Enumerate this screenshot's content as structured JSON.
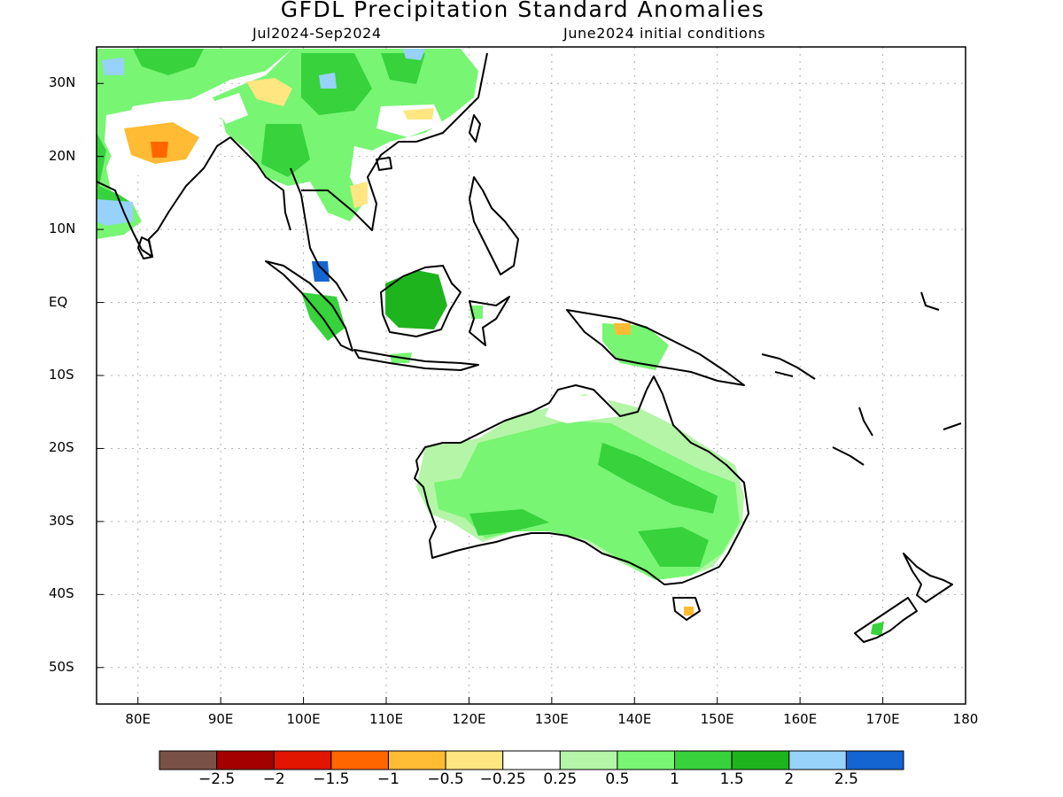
{
  "title": "GFDL Precipitation Standard Anomalies",
  "subtitle_left": "Jul2024-Sep2024",
  "subtitle_right": "June2024 initial conditions",
  "map": {
    "lon_range": [
      75,
      180
    ],
    "lat_range": [
      -55,
      35
    ],
    "lat_labels": [
      "30N",
      "20N",
      "10N",
      "EQ",
      "10S",
      "20S",
      "30S",
      "40S",
      "50S"
    ],
    "lat_values": [
      30,
      20,
      10,
      0,
      -10,
      -20,
      -30,
      -40,
      -50
    ],
    "lon_labels": [
      "80E",
      "90E",
      "100E",
      "110E",
      "120E",
      "130E",
      "140E",
      "150E",
      "160E",
      "170E",
      "180"
    ],
    "lon_values": [
      80,
      90,
      100,
      110,
      120,
      130,
      140,
      150,
      160,
      170,
      180
    ],
    "grid": "dotted",
    "colors": {
      "coast": "#000000",
      "grid": "#b0b0b0"
    }
  },
  "colorbar": {
    "colors": [
      "#7a5146",
      "#a50000",
      "#e01600",
      "#ff6600",
      "#ffbb33",
      "#ffe680",
      "#ffffff",
      "#b4f5a8",
      "#78f573",
      "#37d23c",
      "#1eb41e",
      "#96d2fa",
      "#1464d2"
    ],
    "labels": [
      "-2.5",
      "-2",
      "-1.5",
      "-1",
      "-0.5",
      "-0.25",
      "0.25",
      "0.5",
      "1",
      "1.5",
      "2",
      "2.5"
    ]
  }
}
